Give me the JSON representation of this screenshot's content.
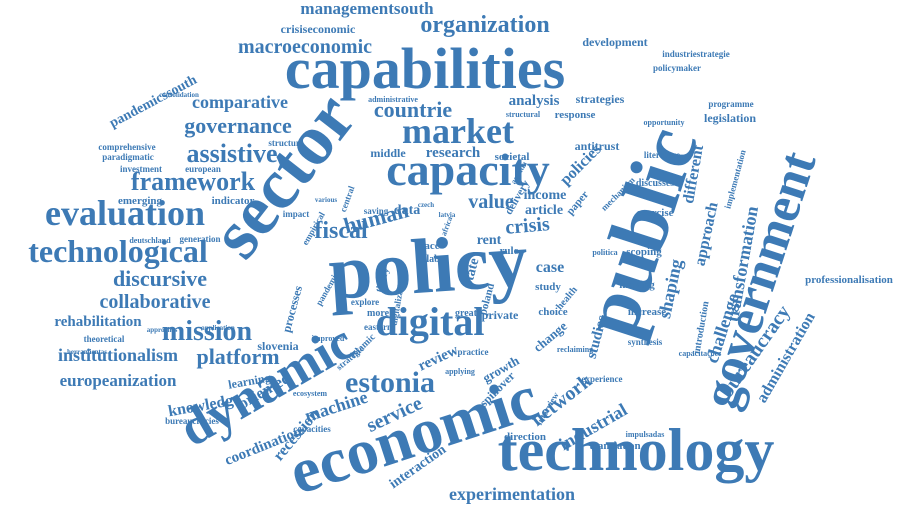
{
  "cloud": {
    "color": "#3d7ab5",
    "words": [
      "policy",
      "public",
      "sector",
      "economic",
      "technology",
      "capabilities",
      "government",
      "dynamic",
      "capacity",
      "market",
      "digital",
      "evaluation",
      "technological",
      "estonia",
      "mission",
      "assistive",
      "framework",
      "governance",
      "organization",
      "macroeconomic",
      "managementsouth",
      "crisiseconomic",
      "countrie",
      "comparative",
      "pandemicssouth",
      "discursive",
      "collaborative",
      "rehabilitation",
      "institutionalism",
      "platform",
      "europeanization",
      "knowledge",
      "coordination",
      "recession",
      "oriented",
      "machine",
      "service",
      "network",
      "industrial",
      "interaction",
      "experimentation",
      "bureaucracy",
      "administration",
      "challenge",
      "transformation",
      "shaping",
      "different",
      "approach",
      "fiscal",
      "human",
      "value",
      "crisis",
      "article",
      "income",
      "data",
      "review",
      "growth",
      "case",
      "study",
      "state",
      "studies",
      "change",
      "rent",
      "rule",
      "research",
      "middle",
      "societal",
      "antitrust",
      "policies",
      "analysis",
      "strategies",
      "response",
      "development",
      "industriestrategie",
      "policymaker",
      "programme",
      "legislation",
      "literature",
      "opportunity",
      "emerging",
      "indicator",
      "european",
      "investment",
      "paradigmatic",
      "comprehensive",
      "structure",
      "consolidation",
      "slovenia",
      "theoretical",
      "herramientas",
      "approches",
      "application",
      "learning",
      "bureaucracies",
      "professionalisation",
      "introduction",
      "increase",
      "making",
      "scoping",
      "synthesis",
      "exercise",
      "capacitações",
      "impulsadas",
      "experience",
      "direction",
      "translation",
      "interview",
      "capacities",
      "practice",
      "spillover",
      "private",
      "choice",
      "great",
      "poland",
      "digitalization",
      "eastern",
      "explore",
      "more",
      "processes",
      "pandemic",
      "strategic",
      "islamic",
      "latvia",
      "czech",
      "africa",
      "acc",
      "lab",
      "saving",
      "impact",
      "generation",
      "deutschland",
      "various",
      "central",
      "empirical",
      "agenda",
      "delivery",
      "paper",
      "discusses",
      "implementation",
      "mechanism",
      "politica",
      "improved",
      "ecosystem",
      "health",
      "applying",
      "reclaiming",
      "theory",
      "administrative",
      "structural"
    ]
  }
}
